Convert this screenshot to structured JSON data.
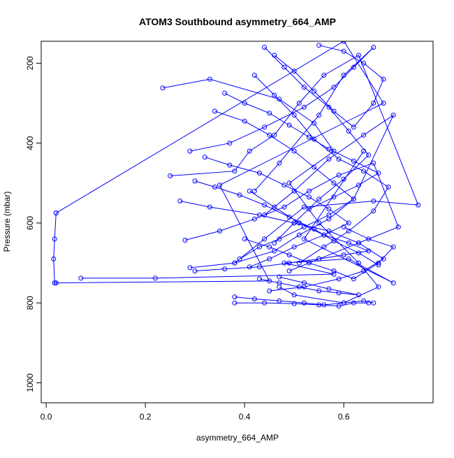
{
  "chart_data": {
    "type": "line",
    "title": "ATOM3 Southbound asymmetry_664_AMP",
    "xlabel": "asymmetry_664_AMP",
    "ylabel": "Pressure (mbar)",
    "xlim": [
      -0.01,
      0.78
    ],
    "ylim": [
      1050,
      145
    ],
    "y_reversed": true,
    "x_ticks": [
      "0.0",
      "0.2",
      "0.4",
      "0.6"
    ],
    "x_tick_values": [
      0.0,
      0.2,
      0.4,
      0.6
    ],
    "y_ticks": [
      "200",
      "400",
      "600",
      "800",
      "1000"
    ],
    "y_tick_values": [
      200,
      400,
      600,
      800,
      1000
    ],
    "grid": false,
    "legend": "none",
    "series_color": "#0000ff",
    "marker": "open-circle",
    "series": [
      {
        "x": [
          0.02,
          0.017,
          0.015,
          0.017,
          0.02,
          0.45,
          0.35,
          0.68,
          0.6,
          0.02
        ],
        "y": [
          575,
          640,
          690,
          750,
          750,
          745,
          505,
          300,
          145,
          575
        ]
      },
      {
        "x": [
          0.07,
          0.22,
          0.58,
          0.48,
          0.61,
          0.7,
          0.52,
          0.64
        ],
        "y": [
          738,
          738,
          728,
          700,
          690,
          750,
          640,
          420
        ]
      },
      {
        "x": [
          0.25,
          0.38,
          0.41,
          0.46,
          0.51,
          0.56,
          0.63,
          0.75,
          0.66,
          0.52,
          0.44,
          0.38
        ],
        "y": [
          482,
          470,
          420,
          380,
          300,
          230,
          180,
          555,
          545,
          560,
          640,
          700
        ]
      },
      {
        "x": [
          0.235,
          0.33,
          0.47,
          0.54,
          0.58,
          0.49,
          0.55,
          0.63,
          0.67,
          0.6,
          0.5,
          0.47
        ],
        "y": [
          262,
          240,
          290,
          350,
          420,
          500,
          600,
          700,
          760,
          800,
          780,
          760
        ]
      },
      {
        "x": [
          0.29,
          0.37,
          0.44,
          0.52,
          0.58,
          0.62,
          0.66,
          0.6,
          0.55,
          0.47,
          0.42
        ],
        "y": [
          420,
          400,
          360,
          310,
          260,
          210,
          160,
          230,
          330,
          450,
          520
        ]
      },
      {
        "x": [
          0.27,
          0.33,
          0.43,
          0.5,
          0.57,
          0.63,
          0.68,
          0.64,
          0.59,
          0.52,
          0.45
        ],
        "y": [
          545,
          560,
          580,
          600,
          620,
          650,
          690,
          720,
          740,
          760,
          770
        ]
      },
      {
        "x": [
          0.28,
          0.35,
          0.42,
          0.48,
          0.53,
          0.59,
          0.66,
          0.71,
          0.63,
          0.55,
          0.49
        ],
        "y": [
          643,
          620,
          590,
          560,
          520,
          480,
          450,
          610,
          650,
          690,
          720
        ]
      },
      {
        "x": [
          0.29,
          0.38,
          0.46,
          0.51,
          0.57,
          0.62,
          0.7,
          0.64,
          0.57,
          0.5,
          0.44
        ],
        "y": [
          712,
          700,
          670,
          630,
          590,
          540,
          330,
          380,
          440,
          520,
          580
        ]
      },
      {
        "x": [
          0.3,
          0.36,
          0.43,
          0.49,
          0.55,
          0.6,
          0.65,
          0.61,
          0.56,
          0.51,
          0.46,
          0.41
        ],
        "y": [
          720,
          715,
          710,
          700,
          690,
          680,
          670,
          650,
          630,
          600,
          560,
          520
        ]
      },
      {
        "x": [
          0.38,
          0.42,
          0.47,
          0.52,
          0.56,
          0.6,
          0.64,
          0.66
        ],
        "y": [
          785,
          790,
          795,
          800,
          805,
          800,
          795,
          800
        ]
      },
      {
        "x": [
          0.38,
          0.44,
          0.5,
          0.55,
          0.59,
          0.62,
          0.65
        ],
        "y": [
          800,
          800,
          802,
          805,
          808,
          800,
          800
        ]
      },
      {
        "x": [
          0.34,
          0.4,
          0.45,
          0.5,
          0.54,
          0.58,
          0.62,
          0.57,
          0.52,
          0.47,
          0.43,
          0.39
        ],
        "y": [
          320,
          345,
          380,
          420,
          460,
          500,
          540,
          580,
          610,
          640,
          660,
          690
        ]
      },
      {
        "x": [
          0.42,
          0.46,
          0.5,
          0.54,
          0.59,
          0.64,
          0.69,
          0.66,
          0.61,
          0.56,
          0.51
        ],
        "y": [
          230,
          280,
          330,
          390,
          440,
          470,
          510,
          570,
          620,
          660,
          700
        ]
      },
      {
        "x": [
          0.44,
          0.48,
          0.52,
          0.57,
          0.61,
          0.65,
          0.6,
          0.55,
          0.5,
          0.46
        ],
        "y": [
          160,
          210,
          260,
          310,
          370,
          430,
          490,
          540,
          600,
          650
        ]
      },
      {
        "x": [
          0.3,
          0.34,
          0.39,
          0.44,
          0.49,
          0.54,
          0.58,
          0.63,
          0.67
        ],
        "y": [
          495,
          510,
          530,
          555,
          585,
          615,
          645,
          675,
          705
        ]
      },
      {
        "x": [
          0.32,
          0.37,
          0.43,
          0.48,
          0.53,
          0.57,
          0.61,
          0.56,
          0.5,
          0.45,
          0.41
        ],
        "y": [
          435,
          455,
          475,
          505,
          535,
          565,
          600,
          630,
          660,
          690,
          710
        ]
      },
      {
        "x": [
          0.36,
          0.4,
          0.45,
          0.49,
          0.53,
          0.57,
          0.62,
          0.67,
          0.63,
          0.58,
          0.53
        ],
        "y": [
          275,
          300,
          325,
          355,
          385,
          415,
          445,
          475,
          505,
          535,
          565
        ]
      },
      {
        "x": [
          0.4,
          0.45,
          0.49,
          0.53,
          0.58,
          0.62,
          0.67,
          0.7,
          0.65,
          0.6
        ],
        "y": [
          640,
          660,
          680,
          700,
          720,
          740,
          700,
          660,
          640,
          610
        ]
      },
      {
        "x": [
          0.43,
          0.47,
          0.51,
          0.55,
          0.59,
          0.63,
          0.57,
          0.52,
          0.47
        ],
        "y": [
          740,
          750,
          760,
          770,
          775,
          780,
          765,
          750,
          735
        ]
      },
      {
        "x": [
          0.46,
          0.5,
          0.54,
          0.58,
          0.62,
          0.66,
          0.68,
          0.64,
          0.6,
          0.55
        ],
        "y": [
          180,
          220,
          270,
          320,
          360,
          300,
          240,
          200,
          170,
          155
        ]
      }
    ]
  }
}
